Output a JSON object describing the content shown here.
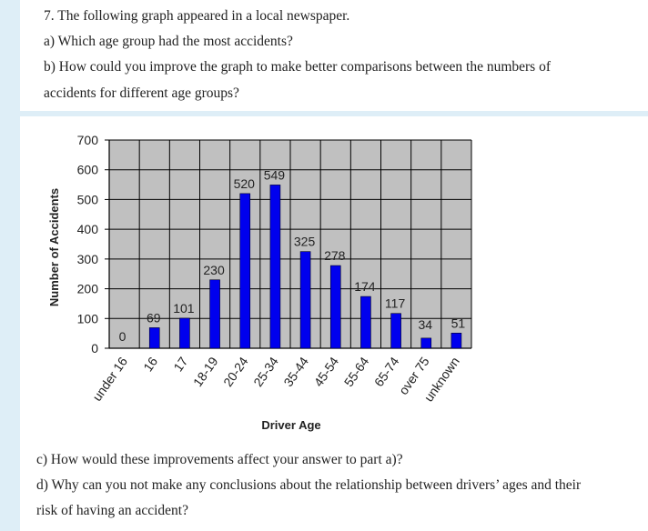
{
  "questions": {
    "q7": "7. The following graph appeared in a local newspaper.",
    "a": "a) Which age group had the most accidents?",
    "b1": "b) How could you improve the graph to make better comparisons between the numbers of",
    "b2": "accidents for different age groups?",
    "c": "c) How would these improvements affect your answer to part a)?",
    "d1": "d) Why can you not make any conclusions about the relationship between drivers’ ages and their",
    "d2": "risk of having an accident?"
  },
  "chart_data": {
    "type": "bar",
    "categories": [
      "under 16",
      "16",
      "17",
      "18-19",
      "20-24",
      "25-34",
      "35-44",
      "45-54",
      "55-64",
      "65-74",
      "over 75",
      "unknown"
    ],
    "values": [
      0,
      69,
      101,
      230,
      520,
      549,
      325,
      278,
      174,
      117,
      34,
      51
    ],
    "title": "",
    "xlabel": "Driver Age",
    "ylabel": "Number of Accidents",
    "ylim": [
      0,
      700
    ],
    "yticks": [
      0,
      100,
      200,
      300,
      400,
      500,
      600,
      700
    ],
    "grid": true,
    "colors": {
      "bar": "#0000ee",
      "plot_bg": "#c0c0c0",
      "grid": "#000000"
    }
  }
}
